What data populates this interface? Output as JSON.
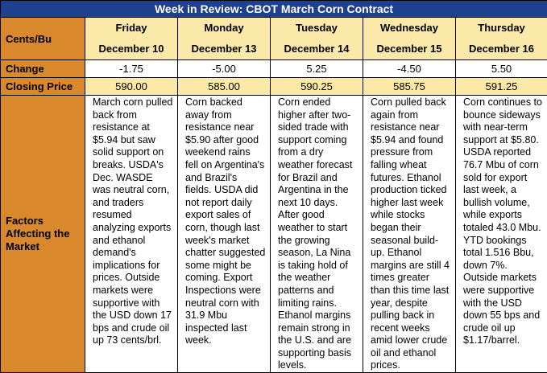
{
  "title": "Week in Review: CBOT March Corn Contract",
  "row_labels": {
    "unit": "Cents/Bu",
    "change": "Change",
    "closing": "Closing Price",
    "factors": "Factors Affecting the Market"
  },
  "days": [
    {
      "weekday": "Friday",
      "date": "December 10",
      "change": "-1.75",
      "closing": "590.00",
      "factors": "March corn pulled back from resistance at $5.94 but saw solid support on breaks. USDA's Dec. WASDE was neutral corn, and traders resumed analyzing exports and ethanol demand's implications for prices. Outside markets were supportive with the USD down 17 bps and crude oil up 73 cents/brl."
    },
    {
      "weekday": "Monday",
      "date": "December 13",
      "change": "-5.00",
      "closing": "585.00",
      "factors": "Corn backed away from resistance near $5.90 after good weekend rains fell on Argentina's and Brazil's fields. USDA did not report daily export sales of corn, though last week's market chatter suggested some might be coming. Export Inspections were neutral corn with 31.9 Mbu inspected last week."
    },
    {
      "weekday": "Tuesday",
      "date": "December 14",
      "change": "5.25",
      "closing": "590.25",
      "factors": "Corn ended higher after two-sided trade with support coming from a dry weather forecast for Brazil and Argentina in the next 10 days. After good weather to start the growing season, La Nina is taking hold of the weather patterns and limiting rains. Ethanol margins remain strong in the U.S. and are supporting basis levels."
    },
    {
      "weekday": "Wednesday",
      "date": "December 15",
      "change": "-4.50",
      "closing": "585.75",
      "factors": "Corn pulled back again from resistance near $5.94 and found pressure from falling wheat futures. Ethanol production ticked higher last week while stocks began their seasonal build-up. Ethanol margins are still 4 times greater than this time last year, despite pulling back in recent weeks amid lower crude oil and ethanol prices."
    },
    {
      "weekday": "Thursday",
      "date": "December 16",
      "change": "5.50",
      "closing": "591.25",
      "factors": "Corn continues to bounce sideways with near-term support at $5.80. USDA reported 76.7 Mbu of corn sold for export last week, a bullish volume, while exports totaled 43.0 Mbu. YTD bookings total 1.516 Bbu, down 7%. Outside markets were supportive with the USD down 55 bps and crude oil up $1.17/barrel."
    }
  ]
}
